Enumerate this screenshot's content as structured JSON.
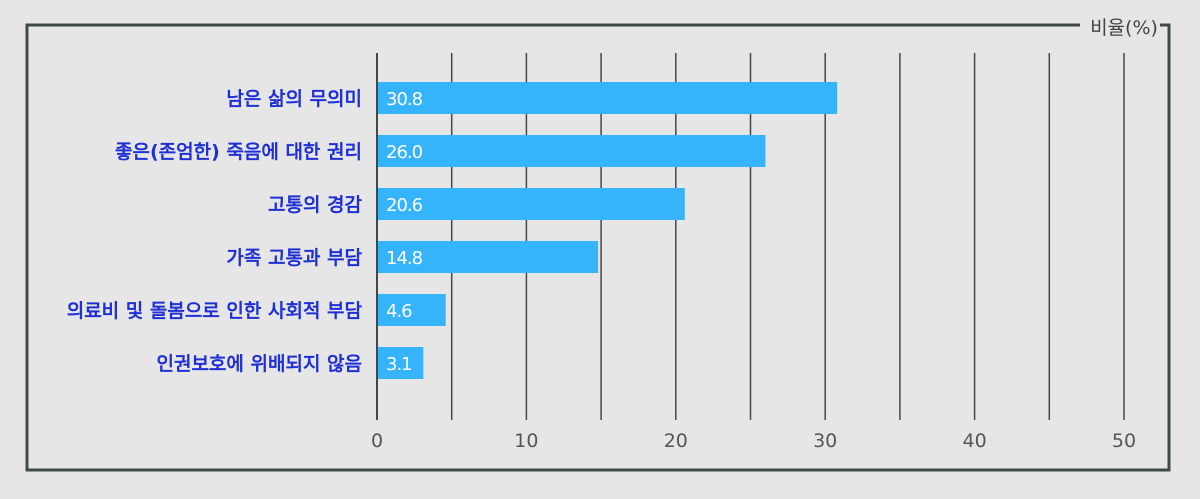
{
  "chart_data": {
    "type": "bar",
    "orientation": "horizontal",
    "unit_label": "비율(%)",
    "categories": [
      "남은 삶의 무의미",
      "좋은(존엄한) 죽음에 대한 권리",
      "고통의 경감",
      "가족 고통과 부담",
      "의료비 및 돌봄으로 인한 사회적 부담",
      "인권보호에 위배되지 않음"
    ],
    "values": [
      30.8,
      26.0,
      20.6,
      14.8,
      4.6,
      3.1
    ],
    "value_labels": [
      "30.8",
      "26.0",
      "20.6",
      "14.8",
      "4.6",
      "3.1"
    ],
    "xlim": [
      0,
      50
    ],
    "xticks": [
      0,
      10,
      20,
      30,
      40,
      50
    ],
    "grid": true,
    "colors": {
      "bar": "#35b3fb",
      "category_text": "#1f2fd6",
      "frame": "#3f4a45",
      "grid": "#3f4a45",
      "background": "#e6e6e6"
    }
  }
}
